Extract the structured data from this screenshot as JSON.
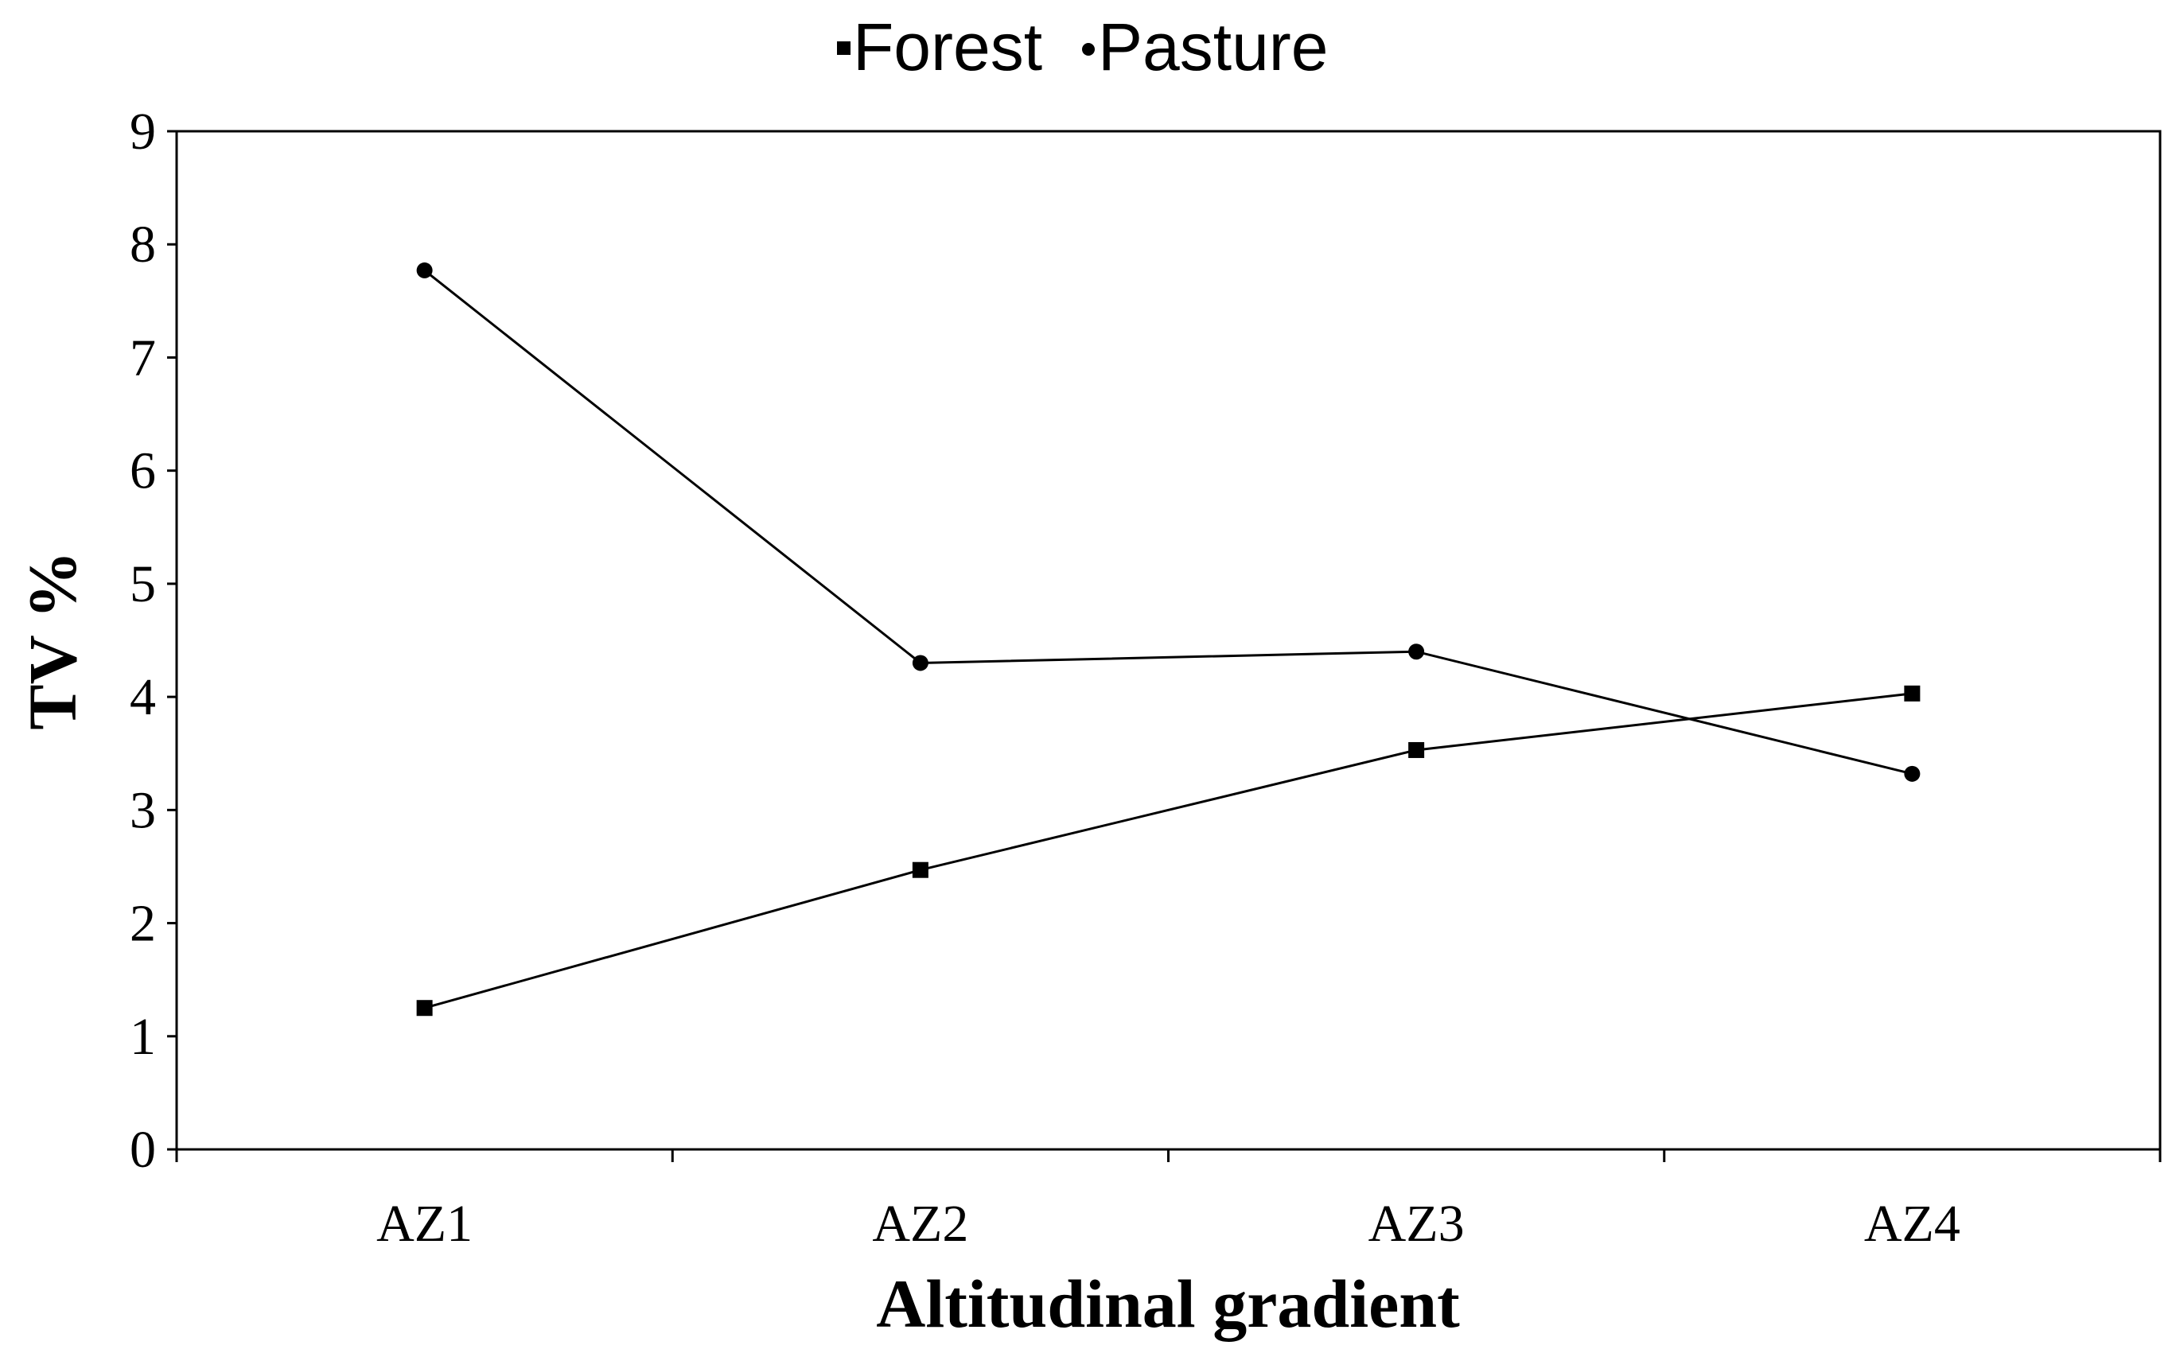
{
  "chart_data": {
    "type": "line",
    "title": "",
    "xlabel": "Altitudinal gradient",
    "ylabel": "TV %",
    "categories": [
      "AZ1",
      "AZ2",
      "AZ3",
      "AZ4"
    ],
    "ylim": [
      0,
      9
    ],
    "yticks": [
      "0",
      "1",
      "2",
      "3",
      "4",
      "5",
      "6",
      "7",
      "8",
      "9"
    ],
    "grid": false,
    "legend_position": "top-center",
    "series": [
      {
        "name": "Forest",
        "marker": "square",
        "color": "#000000",
        "values": [
          1.25,
          2.47,
          3.53,
          4.03
        ]
      },
      {
        "name": "Pasture",
        "marker": "circle",
        "color": "#000000",
        "values": [
          7.77,
          4.3,
          4.4,
          3.32
        ]
      }
    ]
  }
}
